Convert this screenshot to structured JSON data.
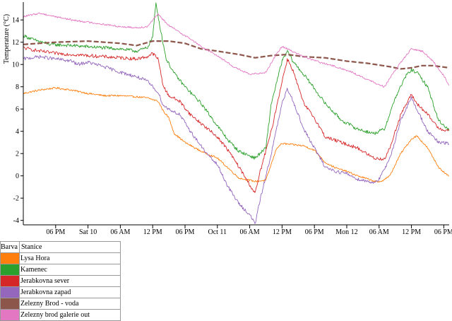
{
  "chart_data": {
    "type": "line",
    "ylabel": "Temperature (°C)",
    "xlabel": "",
    "title": "",
    "ylim": [
      -4.4,
      15.6
    ],
    "yticks": [
      -4,
      -2,
      0,
      2,
      4,
      6,
      8,
      10,
      12,
      14
    ],
    "xlim": [
      0,
      79
    ],
    "xticks": [
      {
        "t": 6,
        "label": "06 PM"
      },
      {
        "t": 12,
        "label": "Sat 10"
      },
      {
        "t": 18,
        "label": "06 AM"
      },
      {
        "t": 24,
        "label": "12 PM"
      },
      {
        "t": 30,
        "label": "06 PM"
      },
      {
        "t": 36,
        "label": "Oct 11"
      },
      {
        "t": 42,
        "label": "06 AM"
      },
      {
        "t": 48,
        "label": "12 PM"
      },
      {
        "t": 54,
        "label": "06 PM"
      },
      {
        "t": 60,
        "label": "Mon 12"
      },
      {
        "t": 66,
        "label": "06 AM"
      },
      {
        "t": 72,
        "label": "12 PM"
      },
      {
        "t": 78,
        "label": "06 PM"
      }
    ],
    "x_unit_note": "",
    "series": [
      {
        "name": "Lysa Hora",
        "color": "#ff7f0e",
        "noise": 0.08,
        "points": [
          [
            0,
            7.4
          ],
          [
            3,
            7.7
          ],
          [
            6,
            7.9
          ],
          [
            9,
            7.7
          ],
          [
            12,
            7.4
          ],
          [
            15,
            7.2
          ],
          [
            18,
            7.2
          ],
          [
            21,
            7.1
          ],
          [
            23,
            7.0
          ],
          [
            25,
            6.7
          ],
          [
            26,
            5.8
          ],
          [
            27,
            5.2
          ],
          [
            28,
            3.8
          ],
          [
            30,
            3.0
          ],
          [
            33,
            2.2
          ],
          [
            36,
            1.6
          ],
          [
            38,
            0.7
          ],
          [
            40,
            -0.2
          ],
          [
            43,
            -0.5
          ],
          [
            45,
            -0.4
          ],
          [
            47,
            2.5
          ],
          [
            48,
            2.9
          ],
          [
            50,
            2.8
          ],
          [
            52,
            2.7
          ],
          [
            54,
            2.3
          ],
          [
            56,
            1.2
          ],
          [
            58,
            0.7
          ],
          [
            60,
            0.4
          ],
          [
            62,
            0.0
          ],
          [
            64,
            -0.3
          ],
          [
            66,
            -0.6
          ],
          [
            68,
            0.0
          ],
          [
            70,
            2.0
          ],
          [
            72,
            3.3
          ],
          [
            73,
            3.6
          ],
          [
            75,
            2.5
          ],
          [
            77,
            0.8
          ],
          [
            79,
            -0.1
          ]
        ]
      },
      {
        "name": "Kamenec",
        "color": "#2ca02c",
        "noise": 0.15,
        "points": [
          [
            0,
            12.6
          ],
          [
            2,
            12.2
          ],
          [
            5,
            11.8
          ],
          [
            9,
            11.7
          ],
          [
            12,
            11.6
          ],
          [
            15,
            11.5
          ],
          [
            18,
            11.4
          ],
          [
            21,
            11.2
          ],
          [
            23,
            11.5
          ],
          [
            24,
            12.5
          ],
          [
            24.6,
            15.5
          ],
          [
            25.5,
            13.0
          ],
          [
            26.5,
            10.5
          ],
          [
            28,
            9.2
          ],
          [
            30,
            8.0
          ],
          [
            33,
            6.5
          ],
          [
            36,
            4.5
          ],
          [
            38,
            3.2
          ],
          [
            40,
            2.2
          ],
          [
            43,
            1.6
          ],
          [
            45,
            2.5
          ],
          [
            46,
            6.5
          ],
          [
            48,
            10.3
          ],
          [
            49,
            11.2
          ],
          [
            50,
            10.3
          ],
          [
            53,
            8.5
          ],
          [
            56,
            6.5
          ],
          [
            59,
            5.0
          ],
          [
            62,
            4.2
          ],
          [
            65,
            3.8
          ],
          [
            67,
            4.2
          ],
          [
            69,
            7.0
          ],
          [
            71,
            9.0
          ],
          [
            72,
            9.5
          ],
          [
            73,
            9.3
          ],
          [
            75,
            8.0
          ],
          [
            77,
            5.0
          ],
          [
            79,
            4.1
          ]
        ]
      },
      {
        "name": "Jerabkovna sever",
        "color": "#d62728",
        "noise": 0.15,
        "points": [
          [
            0,
            11.5
          ],
          [
            3,
            11.2
          ],
          [
            6,
            11.0
          ],
          [
            9,
            10.9
          ],
          [
            12,
            10.8
          ],
          [
            15,
            10.7
          ],
          [
            18,
            10.6
          ],
          [
            21,
            10.5
          ],
          [
            23,
            10.7
          ],
          [
            24,
            11.0
          ],
          [
            25,
            10.5
          ],
          [
            26,
            8.0
          ],
          [
            27,
            7.2
          ],
          [
            29,
            6.7
          ],
          [
            31,
            5.5
          ],
          [
            34,
            4.3
          ],
          [
            36,
            3.5
          ],
          [
            38,
            2.3
          ],
          [
            40,
            0.8
          ],
          [
            42,
            -0.8
          ],
          [
            43,
            -1.6
          ],
          [
            44,
            0.5
          ],
          [
            46,
            4.0
          ],
          [
            48,
            8.5
          ],
          [
            49,
            10.5
          ],
          [
            50,
            9.5
          ],
          [
            52,
            6.5
          ],
          [
            54,
            5.2
          ],
          [
            56,
            3.5
          ],
          [
            59,
            3.0
          ],
          [
            62,
            2.5
          ],
          [
            65,
            1.6
          ],
          [
            67,
            1.5
          ],
          [
            68,
            2.5
          ],
          [
            70,
            5.5
          ],
          [
            72,
            7.3
          ],
          [
            73,
            6.5
          ],
          [
            75,
            5.5
          ],
          [
            77,
            4.3
          ],
          [
            79,
            4.0
          ]
        ]
      },
      {
        "name": "Jerabkovna zapad",
        "color": "#9467bd",
        "noise": 0.15,
        "points": [
          [
            0,
            10.5
          ],
          [
            3,
            10.7
          ],
          [
            6,
            10.5
          ],
          [
            9,
            10.3
          ],
          [
            10,
            10.0
          ],
          [
            12,
            10.2
          ],
          [
            15,
            9.8
          ],
          [
            18,
            9.3
          ],
          [
            21,
            8.9
          ],
          [
            23,
            8.5
          ],
          [
            24,
            8.0
          ],
          [
            25,
            7.5
          ],
          [
            26,
            6.3
          ],
          [
            27,
            6.0
          ],
          [
            29,
            5.5
          ],
          [
            31,
            4.0
          ],
          [
            34,
            2.0
          ],
          [
            36,
            1.0
          ],
          [
            38,
            -1.0
          ],
          [
            40,
            -2.5
          ],
          [
            42,
            -3.5
          ],
          [
            43,
            -4.3
          ],
          [
            44,
            -2.0
          ],
          [
            46,
            2.0
          ],
          [
            48,
            6.5
          ],
          [
            49,
            7.8
          ],
          [
            50,
            6.8
          ],
          [
            52,
            4.2
          ],
          [
            54,
            2.5
          ],
          [
            56,
            0.8
          ],
          [
            58,
            0.4
          ],
          [
            60,
            0.2
          ],
          [
            62,
            -0.3
          ],
          [
            64,
            -0.5
          ],
          [
            65,
            -0.6
          ],
          [
            66,
            -0.3
          ],
          [
            68,
            1.5
          ],
          [
            70,
            5.0
          ],
          [
            72,
            7.0
          ],
          [
            73,
            6.0
          ],
          [
            75,
            4.0
          ],
          [
            77,
            3.0
          ],
          [
            79,
            2.9
          ]
        ]
      },
      {
        "name": "Zelezny Brod - voda",
        "color": "#8c564b",
        "noise": 0,
        "points": [
          [
            0,
            11.8
          ],
          [
            6,
            12.0
          ],
          [
            12,
            12.1
          ],
          [
            18,
            11.9
          ],
          [
            21,
            11.7
          ],
          [
            24,
            12.1
          ],
          [
            27,
            12.1
          ],
          [
            30,
            11.9
          ],
          [
            33,
            11.4
          ],
          [
            36,
            11.2
          ],
          [
            40,
            10.9
          ],
          [
            43,
            10.6
          ],
          [
            46,
            10.8
          ],
          [
            49,
            10.9
          ],
          [
            52,
            10.7
          ],
          [
            56,
            10.6
          ],
          [
            60,
            10.3
          ],
          [
            64,
            10.1
          ],
          [
            68,
            9.8
          ],
          [
            70,
            9.6
          ],
          [
            72,
            9.7
          ],
          [
            74,
            9.9
          ],
          [
            76,
            9.9
          ],
          [
            79,
            9.7
          ]
        ]
      },
      {
        "name": "Zelezny brod galerie out",
        "color": "#e377c2",
        "noise": 0.08,
        "points": [
          [
            0,
            14.3
          ],
          [
            3,
            14.6
          ],
          [
            6,
            14.3
          ],
          [
            9,
            14.0
          ],
          [
            12,
            13.8
          ],
          [
            15,
            13.6
          ],
          [
            18,
            13.4
          ],
          [
            21,
            13.3
          ],
          [
            23,
            13.4
          ],
          [
            24,
            14.0
          ],
          [
            25,
            14.5
          ],
          [
            27,
            13.5
          ],
          [
            29,
            12.9
          ],
          [
            31,
            12.3
          ],
          [
            33,
            11.6
          ],
          [
            36,
            10.8
          ],
          [
            39,
            9.8
          ],
          [
            42,
            9.1
          ],
          [
            45,
            9.3
          ],
          [
            47,
            11.0
          ],
          [
            48,
            11.6
          ],
          [
            49,
            11.4
          ],
          [
            52,
            10.7
          ],
          [
            55,
            10.2
          ],
          [
            58,
            9.8
          ],
          [
            61,
            9.3
          ],
          [
            64,
            8.6
          ],
          [
            67,
            8.0
          ],
          [
            69,
            9.5
          ],
          [
            71,
            10.8
          ],
          [
            72,
            11.4
          ],
          [
            74,
            11.2
          ],
          [
            76,
            10.3
          ],
          [
            78,
            9.0
          ],
          [
            79,
            8.1
          ]
        ]
      }
    ]
  },
  "legend": {
    "header_color": "Barva",
    "header_station": "Stanice",
    "items": [
      {
        "color": "#ff7f0e",
        "label": "Lysa Hora"
      },
      {
        "color": "#2ca02c",
        "label": "Kamenec"
      },
      {
        "color": "#d62728",
        "label": "Jerabkovna sever"
      },
      {
        "color": "#9467bd",
        "label": "Jerabkovna zapad"
      },
      {
        "color": "#8c564b",
        "label": "Zelezny Brod - voda"
      },
      {
        "color": "#e377c2",
        "label": "Zelezny brod galerie out"
      }
    ]
  }
}
